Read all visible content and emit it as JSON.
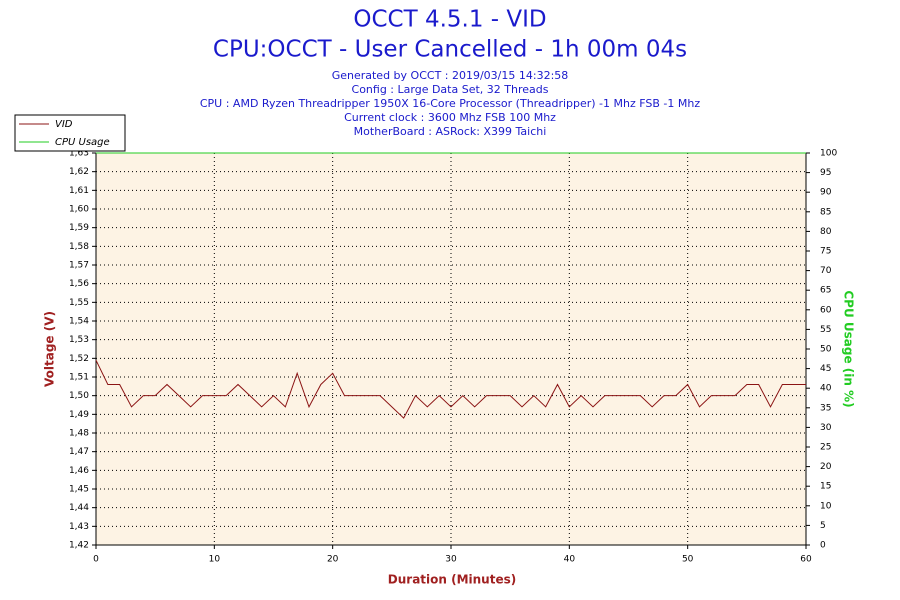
{
  "chart_data": {
    "type": "line",
    "title": "OCCT 4.5.1 - VID",
    "title2": "CPU:OCCT - User Cancelled - 1h 00m 04s",
    "subtitle": [
      "Generated by OCCT : 2019/03/15 14:32:58",
      "Config : Large Data Set, 32 Threads",
      "CPU : AMD Ryzen Threadripper 1950X 16-Core Processor (Threadripper) -1 Mhz FSB -1 Mhz",
      "Current clock : 3600 Mhz FSB 100 Mhz",
      "MotherBoard : ASRock: X399 Taichi"
    ],
    "x_label": "Duration (Minutes)",
    "y_label": "Voltage (V)",
    "y2_label": "CPU Usage (in %)",
    "xlim": [
      0,
      60
    ],
    "xticks": [
      0,
      10,
      20,
      30,
      40,
      50,
      60
    ],
    "ylim": [
      1.42,
      1.63
    ],
    "yticks": [
      {
        "value": 1.42,
        "label": "1,42"
      },
      {
        "value": 1.43,
        "label": "1,43"
      },
      {
        "value": 1.44,
        "label": "1,44"
      },
      {
        "value": 1.45,
        "label": "1,45"
      },
      {
        "value": 1.46,
        "label": "1,46"
      },
      {
        "value": 1.47,
        "label": "1,47"
      },
      {
        "value": 1.48,
        "label": "1,48"
      },
      {
        "value": 1.49,
        "label": "1,49"
      },
      {
        "value": 1.5,
        "label": "1,50"
      },
      {
        "value": 1.51,
        "label": "1,51"
      },
      {
        "value": 1.52,
        "label": "1,52"
      },
      {
        "value": 1.53,
        "label": "1,53"
      },
      {
        "value": 1.54,
        "label": "1,54"
      },
      {
        "value": 1.55,
        "label": "1,55"
      },
      {
        "value": 1.56,
        "label": "1,56"
      },
      {
        "value": 1.57,
        "label": "1,57"
      },
      {
        "value": 1.58,
        "label": "1,58"
      },
      {
        "value": 1.59,
        "label": "1,59"
      },
      {
        "value": 1.6,
        "label": "1,60"
      },
      {
        "value": 1.61,
        "label": "1,61"
      },
      {
        "value": 1.62,
        "label": "1,62"
      },
      {
        "value": 1.63,
        "label": "1,63"
      }
    ],
    "y2lim": [
      0,
      100
    ],
    "y2ticks": [
      0,
      5,
      10,
      15,
      20,
      25,
      30,
      35,
      40,
      45,
      50,
      55,
      60,
      65,
      70,
      75,
      80,
      85,
      90,
      95,
      100
    ],
    "grid": true,
    "legend": "top-left",
    "series": [
      {
        "name": "VID",
        "color": "#8b1414",
        "x": [
          0,
          1,
          2,
          3,
          4,
          5,
          6,
          7,
          8,
          9,
          10,
          11,
          12,
          13,
          14,
          15,
          16,
          17,
          18,
          19,
          20,
          21,
          22,
          23,
          24,
          25,
          26,
          27,
          28,
          29,
          30,
          31,
          32,
          33,
          34,
          35,
          36,
          37,
          38,
          39,
          40,
          41,
          42,
          43,
          44,
          45,
          46,
          47,
          48,
          49,
          50,
          51,
          52,
          53,
          54,
          55,
          56,
          57,
          58,
          59,
          60
        ],
        "values": [
          1.519,
          1.506,
          1.506,
          1.494,
          1.5,
          1.5,
          1.506,
          1.5,
          1.494,
          1.5,
          1.5,
          1.5,
          1.506,
          1.5,
          1.494,
          1.5,
          1.494,
          1.512,
          1.494,
          1.506,
          1.512,
          1.5,
          1.5,
          1.5,
          1.5,
          1.494,
          1.488,
          1.5,
          1.494,
          1.5,
          1.494,
          1.5,
          1.494,
          1.5,
          1.5,
          1.5,
          1.494,
          1.5,
          1.494,
          1.506,
          1.494,
          1.5,
          1.494,
          1.5,
          1.5,
          1.5,
          1.5,
          1.494,
          1.5,
          1.5,
          1.506,
          1.494,
          1.5,
          1.5,
          1.5,
          1.506,
          1.506,
          1.494,
          1.506,
          1.506,
          1.506
        ]
      },
      {
        "name": "CPU Usage",
        "color": "#22cc22",
        "axis": "y2",
        "x": [
          0,
          60
        ],
        "values": [
          100,
          100
        ]
      }
    ]
  }
}
